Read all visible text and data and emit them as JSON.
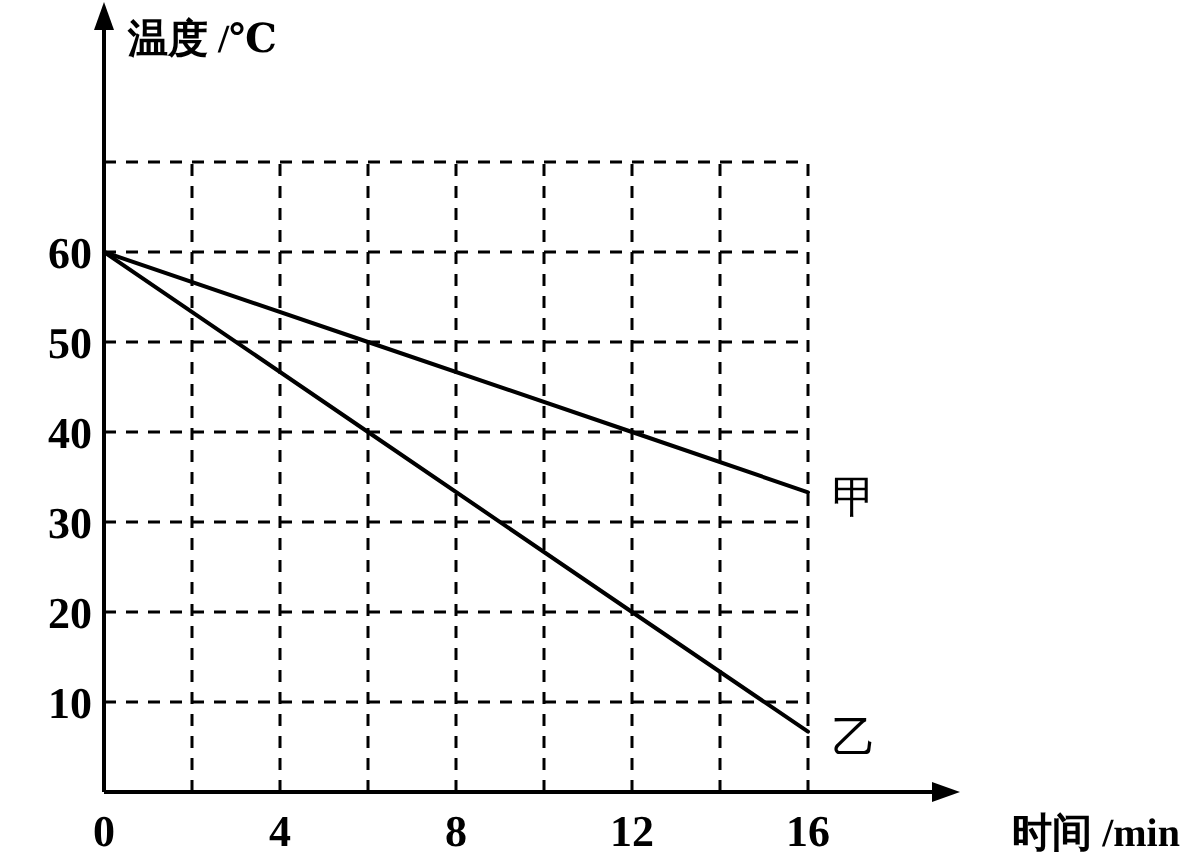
{
  "chart_data": {
    "type": "line",
    "xlabel": "时间 /min",
    "ylabel": "温度 /℃",
    "x": [
      0,
      6,
      12,
      16
    ],
    "series": [
      {
        "name": "甲",
        "color": "#000000",
        "values": [
          60,
          50,
          40,
          33.3
        ]
      },
      {
        "name": "乙",
        "color": "#000000",
        "values": [
          60,
          40,
          20,
          6.7
        ]
      }
    ],
    "xlim": [
      0,
      19
    ],
    "ylim": [
      0,
      86
    ],
    "xticks": [
      0,
      {
        "value": 2,
        "label": null
      },
      4,
      {
        "value": 6,
        "label": null
      },
      8,
      {
        "value": 10,
        "label": null
      },
      12,
      {
        "value": 14,
        "label": null
      },
      16
    ],
    "yticks": [
      10,
      20,
      30,
      40,
      50,
      60,
      {
        "value": 70,
        "label": null
      }
    ],
    "grid": true,
    "marker": "none",
    "line_style": "solid"
  }
}
